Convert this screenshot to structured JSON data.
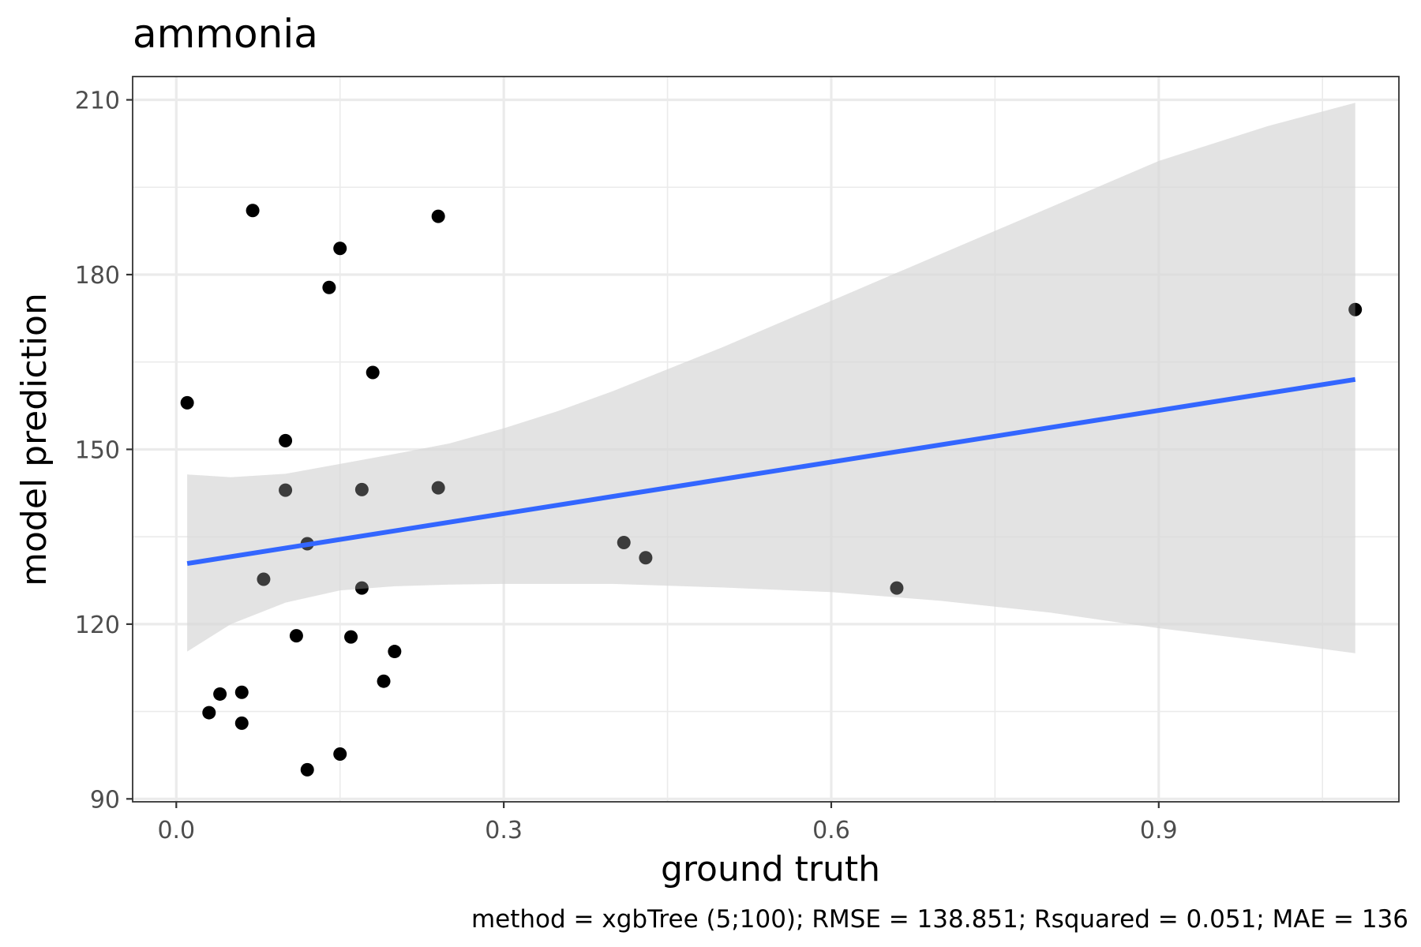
{
  "chart_data": {
    "type": "scatter",
    "title": "ammonia",
    "xlabel": "ground truth",
    "ylabel": "model prediction",
    "caption": "method = xgbTree (5;100); RMSE = 138.851; Rsquared = 0.051; MAE = 136",
    "xlim": [
      -0.04,
      1.12
    ],
    "ylim": [
      89.5,
      214
    ],
    "x_ticks": [
      0.0,
      0.3,
      0.6,
      0.9
    ],
    "x_tick_labels": [
      "0.0",
      "0.3",
      "0.6",
      "0.9"
    ],
    "y_ticks": [
      90,
      120,
      150,
      180,
      210
    ],
    "y_tick_labels": [
      "90",
      "120",
      "150",
      "180",
      "210"
    ],
    "grid": true,
    "points": [
      {
        "x": 0.01,
        "y": 158.0
      },
      {
        "x": 0.03,
        "y": 104.8
      },
      {
        "x": 0.04,
        "y": 108.0
      },
      {
        "x": 0.06,
        "y": 103.0
      },
      {
        "x": 0.06,
        "y": 108.3
      },
      {
        "x": 0.07,
        "y": 191.0
      },
      {
        "x": 0.08,
        "y": 127.7
      },
      {
        "x": 0.1,
        "y": 151.5
      },
      {
        "x": 0.1,
        "y": 143.0
      },
      {
        "x": 0.11,
        "y": 118.0
      },
      {
        "x": 0.12,
        "y": 95.0
      },
      {
        "x": 0.12,
        "y": 133.8
      },
      {
        "x": 0.14,
        "y": 177.8
      },
      {
        "x": 0.15,
        "y": 184.5
      },
      {
        "x": 0.15,
        "y": 97.7
      },
      {
        "x": 0.16,
        "y": 117.8
      },
      {
        "x": 0.17,
        "y": 143.1
      },
      {
        "x": 0.17,
        "y": 126.2
      },
      {
        "x": 0.18,
        "y": 163.2
      },
      {
        "x": 0.19,
        "y": 110.2
      },
      {
        "x": 0.2,
        "y": 115.3
      },
      {
        "x": 0.24,
        "y": 190.0
      },
      {
        "x": 0.24,
        "y": 143.4
      },
      {
        "x": 0.41,
        "y": 134.0
      },
      {
        "x": 0.43,
        "y": 131.4
      },
      {
        "x": 0.66,
        "y": 126.2
      },
      {
        "x": 1.08,
        "y": 174.0
      }
    ],
    "fit_line": {
      "x": [
        0.01,
        1.08
      ],
      "y": [
        130.4,
        162.0
      ],
      "color": "#3366ff"
    },
    "confidence_band": {
      "color": "#d6d6d6",
      "x": [
        0.01,
        0.05,
        0.1,
        0.15,
        0.2,
        0.25,
        0.3,
        0.35,
        0.4,
        0.5,
        0.6,
        0.7,
        0.8,
        0.9,
        1.0,
        1.08
      ],
      "upper": [
        145.7,
        145.2,
        145.8,
        147.5,
        149.2,
        151.0,
        153.6,
        156.6,
        160.0,
        167.5,
        175.5,
        183.5,
        191.5,
        199.5,
        205.5,
        209.5
      ],
      "lower": [
        115.3,
        120.0,
        123.7,
        125.8,
        126.5,
        126.8,
        126.9,
        126.9,
        126.9,
        126.3,
        125.5,
        124.0,
        122.0,
        119.3,
        117.0,
        115.0
      ]
    },
    "colors": {
      "points": "#000000",
      "grid": "#ebebeb",
      "panel_border": "#333333"
    }
  }
}
